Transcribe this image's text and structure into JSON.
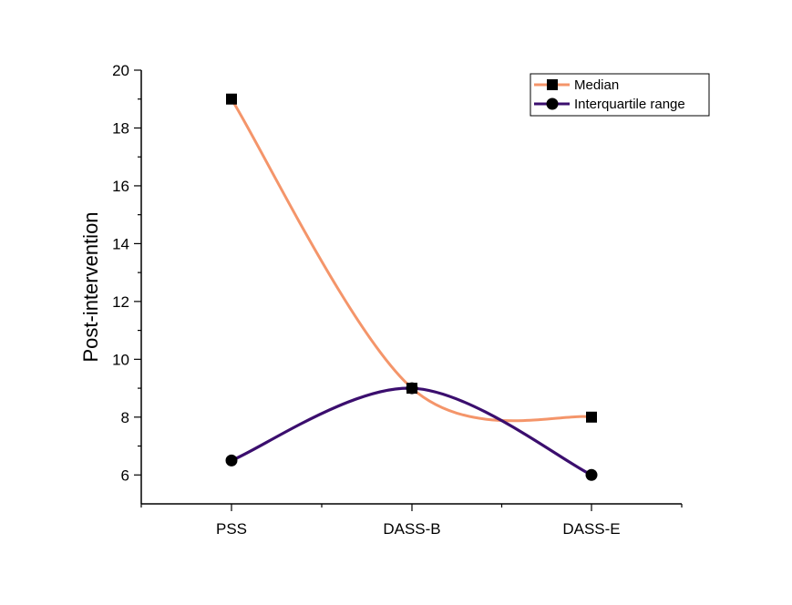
{
  "chart_data": {
    "type": "line",
    "categories": [
      "PSS",
      "DASS-B",
      "DASS-E"
    ],
    "series": [
      {
        "name": "Median",
        "values": [
          19,
          9,
          8
        ],
        "color": "#f4956a",
        "marker": "square"
      },
      {
        "name": "Interquartile range",
        "values": [
          6.5,
          9,
          6
        ],
        "color": "#3b0e6e",
        "marker": "circle"
      }
    ],
    "xlabel": "",
    "ylabel": "Post-intervention",
    "ylim": [
      5,
      20
    ],
    "yticks": [
      6,
      8,
      10,
      12,
      14,
      16,
      18,
      20
    ],
    "yticks_labeled": [
      6,
      8,
      10,
      12,
      14,
      16,
      18,
      20
    ],
    "smooth": true,
    "grid": false,
    "legend_position": "top-right"
  }
}
